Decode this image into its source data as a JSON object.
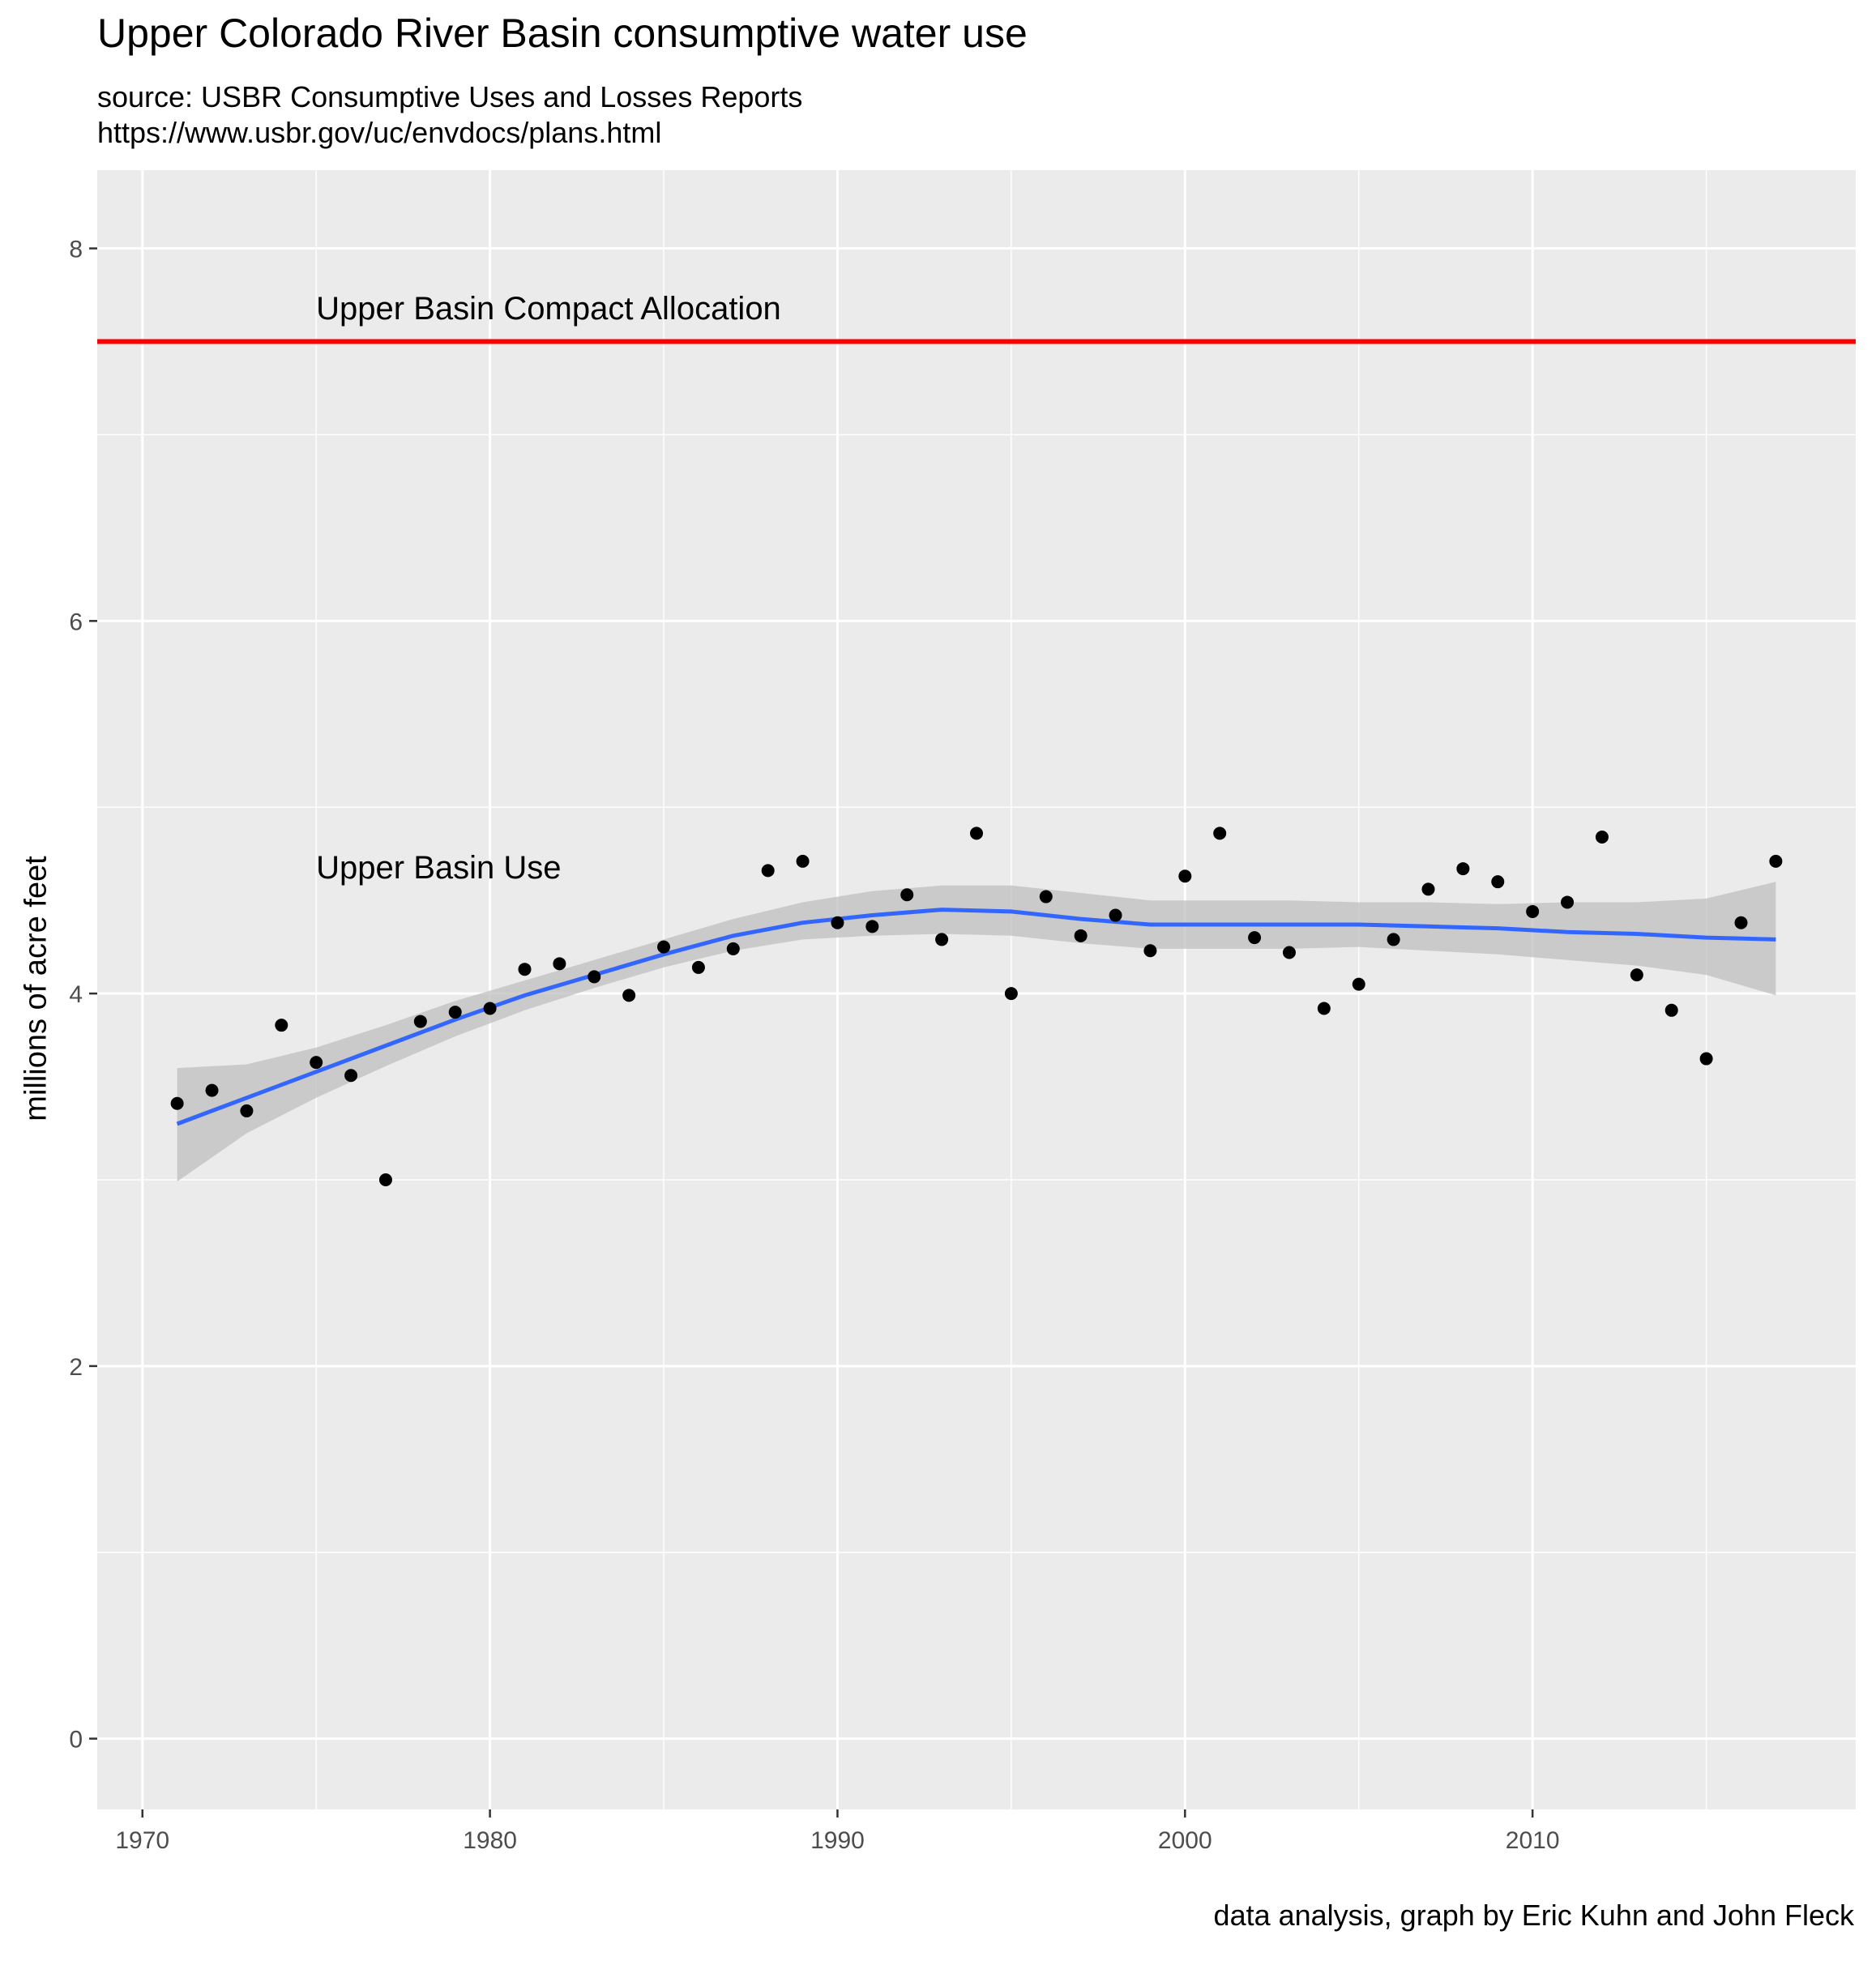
{
  "chart_data": {
    "type": "scatter",
    "title": "Upper Colorado River Basin consumptive water use",
    "subtitle_lines": [
      "source: USBR Consumptive Uses and Losses Reports",
      "https://www.usbr.gov/uc/envdocs/plans.html"
    ],
    "caption": "data analysis, graph by Eric Kuhn and John Fleck",
    "xlabel": "",
    "ylabel": "millions of acre feet",
    "xlim": [
      1968.7,
      2019.3
    ],
    "ylim": [
      -0.38,
      8.42
    ],
    "x_ticks": [
      1970,
      1980,
      1990,
      2000,
      2010
    ],
    "y_ticks": [
      0,
      2,
      4,
      6,
      8
    ],
    "grid": true,
    "colors": {
      "panel": "#ebebeb",
      "grid": "#ffffff",
      "points": "#000000",
      "smooth": "#3366ff",
      "band": "#bfbfbf",
      "allocation": "#ff0000"
    },
    "allocation": {
      "y": 7.5,
      "label": "Upper Basin Compact Allocation",
      "label_at": {
        "x": 1975,
        "y": 7.68
      }
    },
    "series_label": {
      "text": "Upper Basin Use",
      "at": {
        "x": 1975,
        "y": 4.68
      }
    },
    "points": {
      "x": [
        1971,
        1972,
        1973,
        1974,
        1975,
        1976,
        1977,
        1978,
        1979,
        1980,
        1981,
        1982,
        1983,
        1984,
        1985,
        1986,
        1987,
        1988,
        1989,
        1990,
        1991,
        1992,
        1993,
        1994,
        1995,
        1996,
        1997,
        1998,
        1999,
        2000,
        2001,
        2002,
        2003,
        2004,
        2005,
        2006,
        2007,
        2008,
        2009,
        2010,
        2011,
        2012,
        2013,
        2014,
        2015,
        2016,
        2017
      ],
      "y": [
        3.41,
        3.48,
        3.37,
        3.83,
        3.63,
        3.56,
        3.0,
        3.85,
        3.9,
        3.92,
        4.13,
        4.16,
        4.09,
        3.99,
        4.25,
        4.14,
        4.24,
        4.66,
        4.71,
        4.38,
        4.36,
        4.53,
        4.29,
        4.86,
        4.0,
        4.52,
        4.31,
        4.42,
        4.23,
        4.63,
        4.86,
        4.3,
        4.22,
        3.92,
        4.05,
        4.29,
        4.56,
        4.67,
        4.6,
        4.44,
        4.49,
        4.84,
        4.1,
        3.91,
        3.65,
        4.38,
        4.71
      ]
    },
    "smooth": {
      "x": [
        1971,
        1973,
        1975,
        1977,
        1979,
        1981,
        1983,
        1985,
        1987,
        1989,
        1991,
        1993,
        1995,
        1997,
        1999,
        2001,
        2003,
        2005,
        2007,
        2009,
        2011,
        2013,
        2015,
        2017
      ],
      "y": [
        3.3,
        3.44,
        3.58,
        3.72,
        3.86,
        3.99,
        4.1,
        4.21,
        4.31,
        4.38,
        4.42,
        4.45,
        4.44,
        4.4,
        4.37,
        4.37,
        4.37,
        4.37,
        4.36,
        4.35,
        4.33,
        4.32,
        4.3,
        4.29
      ],
      "lower": [
        2.99,
        3.25,
        3.44,
        3.61,
        3.77,
        3.91,
        4.03,
        4.14,
        4.23,
        4.29,
        4.31,
        4.32,
        4.31,
        4.27,
        4.24,
        4.24,
        4.24,
        4.25,
        4.23,
        4.21,
        4.18,
        4.15,
        4.1,
        3.99
      ],
      "upper": [
        3.6,
        3.62,
        3.71,
        3.83,
        3.96,
        4.07,
        4.18,
        4.29,
        4.4,
        4.49,
        4.55,
        4.58,
        4.58,
        4.54,
        4.5,
        4.5,
        4.5,
        4.49,
        4.49,
        4.48,
        4.49,
        4.49,
        4.51,
        4.6
      ]
    }
  }
}
